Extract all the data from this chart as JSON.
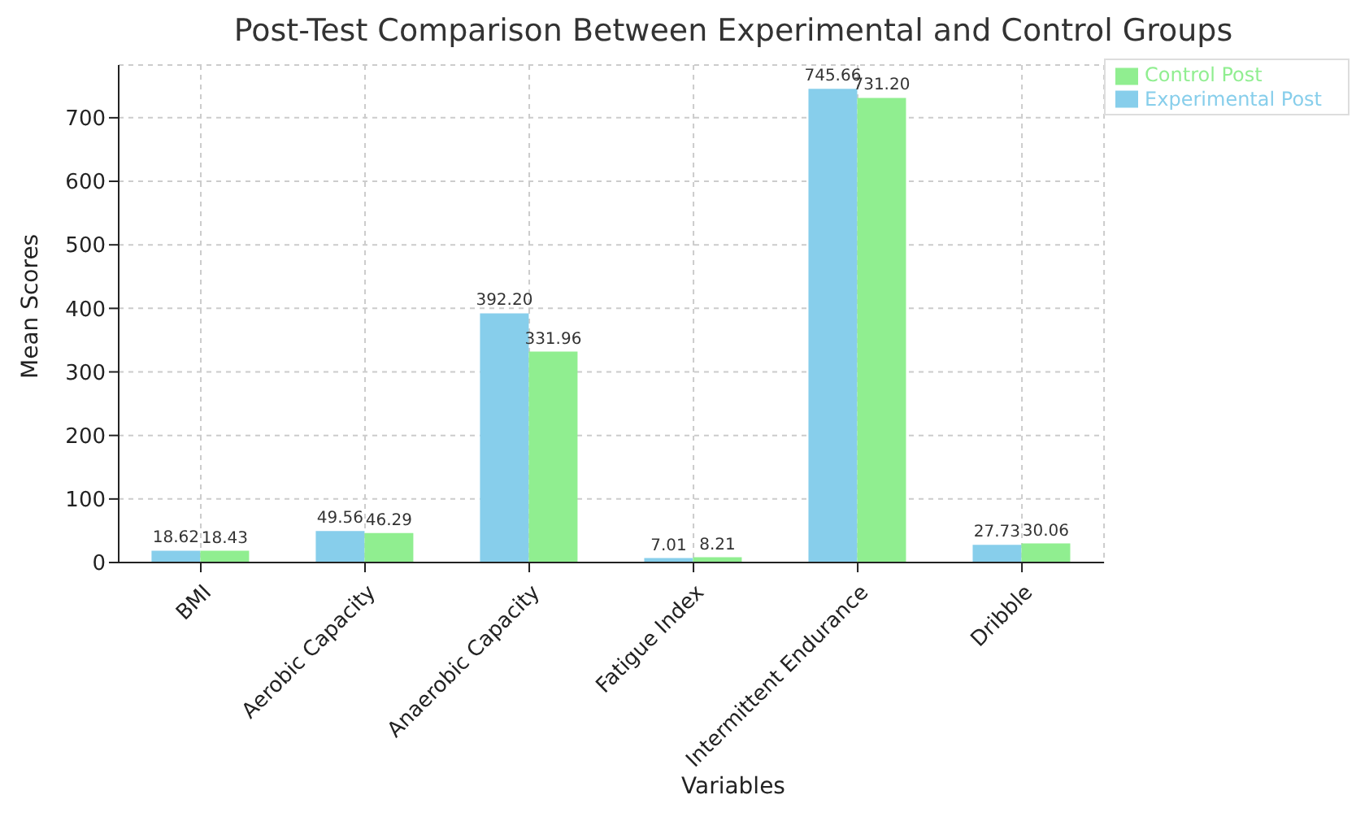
{
  "chart_data": {
    "type": "bar",
    "title": "Post-Test Comparison Between Experimental and Control Groups",
    "xlabel": "Variables",
    "ylabel": "Mean Scores",
    "categories": [
      "BMI",
      "Aerobic Capacity",
      "Anaerobic Capacity",
      "Fatigue Index",
      "Intermittent Endurance",
      "Dribble"
    ],
    "series": [
      {
        "name": "Experimental Post",
        "color": "#87ceeb",
        "values": [
          18.62,
          49.56,
          392.2,
          7.01,
          745.66,
          27.73
        ],
        "value_labels": [
          "18.62",
          "49.56",
          "392.20",
          "7.01",
          "745.66",
          "27.73"
        ]
      },
      {
        "name": "Control Post",
        "color": "#90ee90",
        "values": [
          18.43,
          46.29,
          331.96,
          8.21,
          731.2,
          30.06
        ],
        "value_labels": [
          "18.43",
          "46.29",
          "331.96",
          "8.21",
          "731.20",
          "30.06"
        ]
      }
    ],
    "ylim": [
      0,
      783
    ],
    "yticks": [
      0,
      100,
      200,
      300,
      400,
      500,
      600,
      700
    ],
    "grid": true,
    "legend": "top right"
  }
}
